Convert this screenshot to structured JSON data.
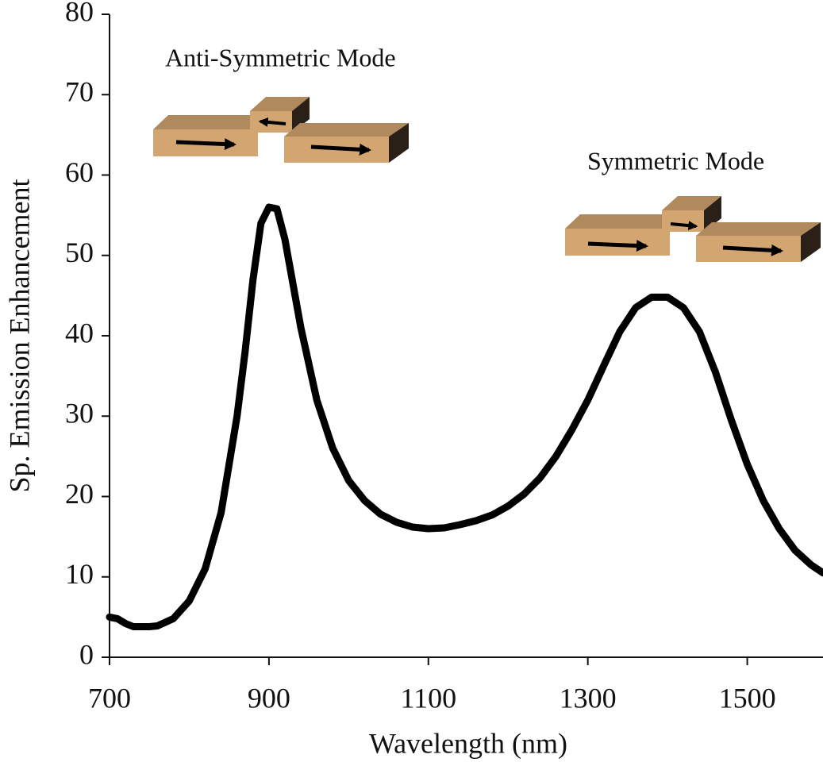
{
  "chart_data": {
    "type": "line",
    "xlabel": "Wavelength (nm)",
    "ylabel": "Sp. Emission Enhancement",
    "annotations": [
      "Anti-Symmetric Mode",
      "Symmetric Mode"
    ],
    "color": "#000000",
    "x": [
      700,
      710,
      720,
      730,
      750,
      760,
      780,
      800,
      820,
      840,
      860,
      870,
      880,
      890,
      900,
      910,
      920,
      940,
      960,
      980,
      1000,
      1020,
      1040,
      1060,
      1080,
      1100,
      1120,
      1140,
      1160,
      1180,
      1200,
      1220,
      1240,
      1260,
      1280,
      1300,
      1320,
      1340,
      1360,
      1380,
      1400,
      1420,
      1440,
      1460,
      1480,
      1500,
      1520,
      1540,
      1560,
      1580,
      1595
    ],
    "values": [
      5,
      4.8,
      4.2,
      3.8,
      3.8,
      3.9,
      4.8,
      7,
      11,
      18,
      30,
      38,
      47,
      54,
      56,
      55.8,
      52,
      41,
      32,
      26,
      22,
      19.5,
      17.8,
      16.8,
      16.2,
      16,
      16.1,
      16.5,
      17,
      17.7,
      18.8,
      20.3,
      22.3,
      25,
      28.3,
      32,
      36.3,
      40.5,
      43.5,
      44.8,
      44.8,
      43.5,
      40.5,
      35.5,
      29.5,
      24,
      19.5,
      16,
      13.3,
      11.5,
      10.5
    ],
    "xlim": [
      700,
      1595
    ],
    "ylim": [
      0,
      80
    ],
    "xticks": [
      700,
      900,
      1100,
      1300,
      1500
    ],
    "yticks": [
      0,
      10,
      20,
      30,
      40,
      50,
      60,
      70,
      80
    ]
  }
}
